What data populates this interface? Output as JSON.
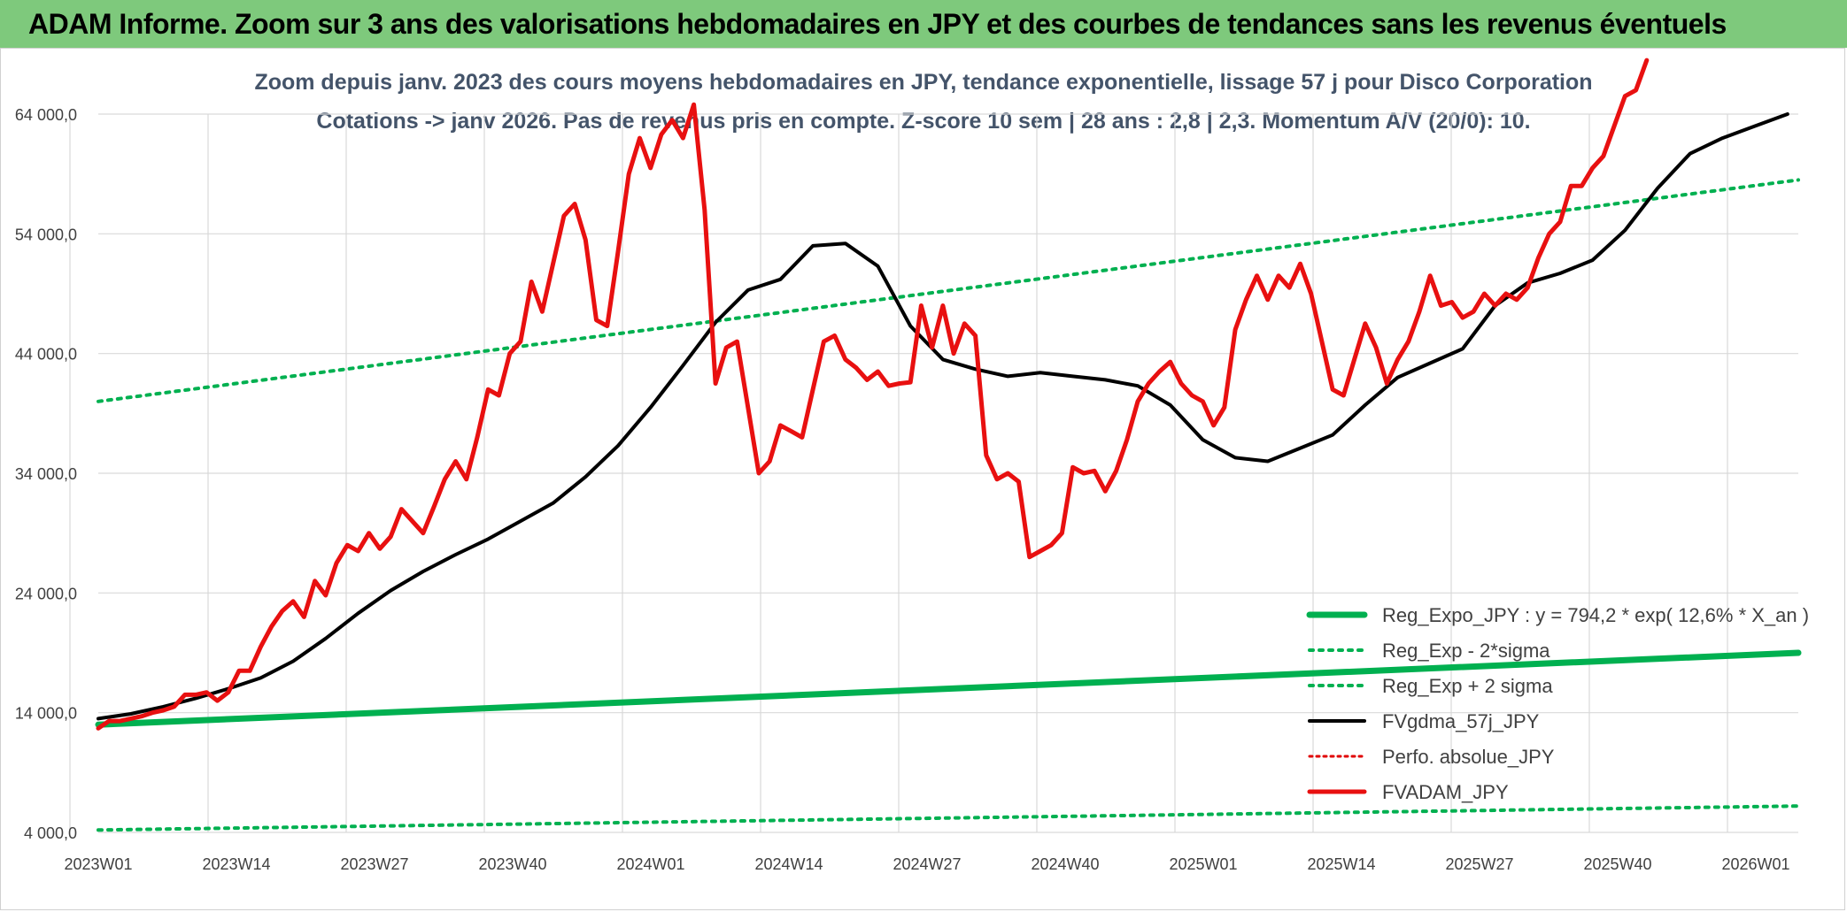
{
  "banner": {
    "title": "ADAM Informe. Zoom sur 3 ans des valorisations hebdomadaires en JPY et des courbes de tendances sans les revenus éventuels"
  },
  "chart_data": {
    "type": "line",
    "title": "Zoom depuis janv. 2023 des cours moyens hebdomadaires en JPY, tendance exponentielle, lissage 57 j pour Disco Corporation",
    "subtitle": "Cotations -> janv 2026. Pas de revenus pris en compte. Z-score 10 sem | 28 ans : 2,8 | 2,3. Momentum A/V (20/0): 10.",
    "x_tick_labels": [
      "2023W01",
      "2023W14",
      "2023W27",
      "2023W40",
      "2024W01",
      "2024W14",
      "2024W27",
      "2024W40",
      "2025W01",
      "2025W14",
      "2025W27",
      "2025W40",
      "2026W01"
    ],
    "y_tick_labels": [
      "4 000,0",
      "14 000,0",
      "24 000,0",
      "34 000,0",
      "44 000,0",
      "54 000,0",
      "64 000,0"
    ],
    "ylim": [
      4000,
      64000
    ],
    "xlim": [
      0,
      157
    ],
    "grid": true,
    "legend_position": "bottom-right",
    "colors": {
      "expo": "#00b050",
      "band": "#00b050",
      "fvgdma": "#000000",
      "perfo": "#e00000",
      "adam": "#e81010"
    },
    "series": [
      {
        "name": "Reg_Expo_JPY : y = 794,2 * exp( 12,6% *  X_an )",
        "style": "thick-green",
        "x": [
          0,
          157
        ],
        "values": [
          13000,
          19000
        ]
      },
      {
        "name": "Reg_Exp - 2*sigma",
        "style": "dotted-green",
        "x": [
          0,
          157
        ],
        "values": [
          4200,
          6200
        ]
      },
      {
        "name": "Reg_Exp + 2 sigma",
        "style": "dotted-green",
        "x": [
          0,
          157
        ],
        "values": [
          40000,
          58500
        ]
      },
      {
        "name": "FVgdma_57j_JPY",
        "style": "black",
        "x": [
          0,
          3,
          6,
          9,
          12,
          15,
          18,
          21,
          24,
          27,
          30,
          33,
          36,
          39,
          42,
          45,
          48,
          51,
          54,
          57,
          60,
          63,
          66,
          69,
          72,
          75,
          78,
          81,
          84,
          87,
          90,
          93,
          96,
          99,
          102,
          105,
          108,
          111,
          114,
          117,
          120,
          123,
          126,
          129,
          132,
          135,
          138,
          141,
          144,
          147,
          150,
          153,
          156
        ],
        "values": [
          13500,
          13900,
          14500,
          15200,
          16000,
          16900,
          18300,
          20200,
          22300,
          24200,
          25800,
          27200,
          28500,
          30000,
          31500,
          33700,
          36300,
          39500,
          43000,
          46600,
          49300,
          50200,
          53000,
          53200,
          51300,
          46300,
          43500,
          42700,
          42100,
          42400,
          42100,
          41800,
          41300,
          39700,
          36800,
          35300,
          35000,
          36100,
          37200,
          39700,
          42000,
          43200,
          44400,
          48000,
          49900,
          50700,
          51800,
          54300,
          57800,
          60700,
          62000,
          63000,
          64000
        ]
      },
      {
        "name": "Perfo. absolue_JPY",
        "style": "dotted-red",
        "x": [],
        "values": []
      },
      {
        "name": "FVADAM_JPY",
        "style": "red",
        "x": [
          0,
          1,
          2,
          3,
          4,
          5,
          6,
          7,
          8,
          9,
          10,
          11,
          12,
          13,
          14,
          15,
          16,
          17,
          18,
          19,
          20,
          21,
          22,
          23,
          24,
          25,
          26,
          27,
          28,
          29,
          30,
          31,
          32,
          33,
          34,
          35,
          36,
          37,
          38,
          39,
          40,
          41,
          42,
          43,
          44,
          45,
          46,
          47,
          48,
          49,
          50,
          51,
          52,
          53,
          54,
          55,
          56,
          57,
          58,
          59,
          60,
          61,
          62,
          63,
          64,
          65,
          66,
          67,
          68,
          69,
          70,
          71,
          72,
          73,
          74,
          75,
          76,
          77,
          78,
          79,
          80,
          81,
          82,
          83,
          84,
          85,
          86,
          87,
          88,
          89,
          90,
          91,
          92,
          93,
          94,
          95,
          96,
          97,
          98,
          99,
          100,
          101,
          102,
          103,
          104,
          105,
          106,
          107,
          108,
          109,
          110,
          111,
          112,
          113,
          114,
          115,
          116,
          117,
          118,
          119,
          120,
          121,
          122,
          123,
          124,
          125,
          126,
          127,
          128,
          129,
          130,
          131,
          132,
          133,
          134,
          135,
          136,
          137,
          138,
          139,
          140,
          141,
          142,
          143
        ],
        "values": [
          12700,
          13300,
          13300,
          13500,
          13700,
          14000,
          14200,
          14500,
          15500,
          15500,
          15700,
          15000,
          15700,
          17500,
          17500,
          19500,
          21200,
          22500,
          23300,
          22000,
          25000,
          23800,
          26500,
          28000,
          27500,
          29000,
          27700,
          28700,
          31000,
          30000,
          29000,
          31200,
          33500,
          35000,
          33500,
          37000,
          41000,
          40500,
          44000,
          45000,
          50000,
          47500,
          51500,
          55500,
          56500,
          53500,
          46800,
          46300,
          52500,
          59000,
          62000,
          59500,
          62300,
          63500,
          62000,
          64800,
          56000,
          41500,
          44500,
          45000,
          39500,
          34000,
          35000,
          38000,
          37500,
          37000,
          41000,
          45000,
          45500,
          43500,
          42800,
          41800,
          42500,
          41300,
          41500,
          41600,
          48000,
          44500,
          48000,
          44000,
          46500,
          45500,
          35500,
          33500,
          34000,
          33300,
          27000,
          27500,
          28000,
          29000,
          34500,
          34000,
          34200,
          32500,
          34200,
          36800,
          40000,
          41500,
          42500,
          43300,
          41500,
          40500,
          40000,
          38000,
          39500,
          46000,
          48500,
          50500,
          48500,
          50500,
          49500,
          51500,
          49000,
          45000,
          41000,
          40500,
          43500,
          46500,
          44500,
          41500,
          43500,
          45000,
          47500,
          50500,
          48000,
          48300,
          47000,
          47500,
          49000,
          48000,
          49000,
          48500,
          49500,
          52000,
          54000,
          55000,
          58000,
          58000,
          59500,
          60500,
          63000,
          65500,
          66000,
          68500
        ]
      }
    ]
  }
}
